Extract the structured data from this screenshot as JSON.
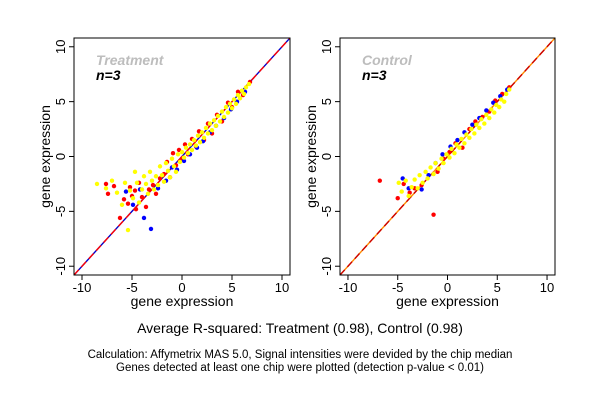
{
  "chart_data": [
    {
      "type": "scatter",
      "panel_label": "Treatment",
      "n_label": "n=3",
      "xlabel": "gene expression",
      "ylabel": "gene expression",
      "xlim": [
        -10.8,
        10.8
      ],
      "ylim": [
        -10.8,
        10.8
      ],
      "x_ticks": [
        -10,
        -5,
        0,
        5,
        10
      ],
      "y_ticks": [
        -10,
        -5,
        0,
        5,
        10
      ],
      "grid": false,
      "reference_lines": [
        {
          "slope": 1,
          "intercept": 0,
          "color": "#0000cc"
        },
        {
          "slope": 1,
          "intercept": 0,
          "color": "#ff0000"
        }
      ],
      "series": [
        {
          "color": "#ff0000",
          "values": [
            [
              -7.6,
              -2.5
            ],
            [
              -7.4,
              -3.4
            ],
            [
              -6.8,
              -2.7
            ],
            [
              -6.2,
              -5.6
            ],
            [
              -5.8,
              -3.9
            ],
            [
              -5.4,
              -4.3
            ],
            [
              -5.2,
              -2.8
            ],
            [
              -5.0,
              -3.6
            ],
            [
              -4.7,
              -3.1
            ],
            [
              -4.6,
              -4.8
            ],
            [
              -4.3,
              -2.4
            ],
            [
              -4.0,
              -3.7
            ],
            [
              -3.6,
              -4.6
            ],
            [
              -3.3,
              -3.0
            ],
            [
              -2.9,
              -2.6
            ],
            [
              -2.6,
              -3.4
            ],
            [
              -2.2,
              -2.0
            ],
            [
              -1.8,
              -1.6
            ],
            [
              -1.5,
              -0.5
            ],
            [
              -1.2,
              -1.9
            ],
            [
              -0.9,
              0.3
            ],
            [
              -0.6,
              -0.8
            ],
            [
              -0.3,
              0.6
            ],
            [
              0.0,
              -0.2
            ],
            [
              0.3,
              1.1
            ],
            [
              0.6,
              0.2
            ],
            [
              1.0,
              1.6
            ],
            [
              1.4,
              0.9
            ],
            [
              1.7,
              2.3
            ],
            [
              2.2,
              1.5
            ],
            [
              2.6,
              3.0
            ],
            [
              3.0,
              2.1
            ],
            [
              3.5,
              3.8
            ],
            [
              4.0,
              3.2
            ],
            [
              4.6,
              4.9
            ],
            [
              5.0,
              4.5
            ],
            [
              5.6,
              5.9
            ],
            [
              6.1,
              5.6
            ],
            [
              6.8,
              6.8
            ]
          ]
        },
        {
          "color": "#0000ff",
          "values": [
            [
              -5.6,
              -3.2
            ],
            [
              -4.9,
              -4.4
            ],
            [
              -4.2,
              -3.0
            ],
            [
              -3.8,
              -5.6
            ],
            [
              -3.1,
              -6.6
            ],
            [
              -2.4,
              -2.9
            ],
            [
              -1.6,
              -2.2
            ],
            [
              -1.0,
              -1.0
            ],
            [
              -0.5,
              -1.2
            ],
            [
              0.2,
              -0.4
            ],
            [
              0.8,
              0.2
            ],
            [
              1.5,
              0.8
            ],
            [
              2.1,
              1.4
            ],
            [
              2.8,
              2.2
            ],
            [
              3.4,
              2.8
            ],
            [
              4.2,
              3.5
            ],
            [
              4.9,
              4.3
            ],
            [
              5.5,
              5.0
            ],
            [
              6.3,
              5.9
            ]
          ]
        },
        {
          "color": "#ffff00",
          "values": [
            [
              -8.5,
              -2.5
            ],
            [
              -7.6,
              -2.9
            ],
            [
              -7.0,
              -2.2
            ],
            [
              -6.5,
              -3.3
            ],
            [
              -6.0,
              -4.4
            ],
            [
              -5.7,
              -2.4
            ],
            [
              -5.4,
              -6.7
            ],
            [
              -5.2,
              -3.1
            ],
            [
              -4.9,
              -3.8
            ],
            [
              -4.7,
              -1.4
            ],
            [
              -4.5,
              -2.4
            ],
            [
              -4.3,
              -4.2
            ],
            [
              -4.0,
              -3.0
            ],
            [
              -3.8,
              -1.8
            ],
            [
              -3.6,
              -2.5
            ],
            [
              -3.4,
              -3.4
            ],
            [
              -3.2,
              -1.4
            ],
            [
              -3.0,
              -2.2
            ],
            [
              -2.8,
              -3.0
            ],
            [
              -2.6,
              -1.8
            ],
            [
              -2.4,
              -2.6
            ],
            [
              -2.2,
              -0.9
            ],
            [
              -2.0,
              -1.7
            ],
            [
              -1.8,
              -2.3
            ],
            [
              -1.6,
              -0.6
            ],
            [
              -1.4,
              -1.3
            ],
            [
              -1.2,
              -1.9
            ],
            [
              -1.0,
              -0.2
            ],
            [
              -0.8,
              -0.9
            ],
            [
              -0.6,
              -1.4
            ],
            [
              -0.4,
              0.2
            ],
            [
              -0.2,
              -0.5
            ],
            [
              0.0,
              0.4
            ],
            [
              0.2,
              -0.1
            ],
            [
              0.4,
              0.8
            ],
            [
              0.6,
              0.3
            ],
            [
              0.8,
              1.1
            ],
            [
              1.0,
              0.6
            ],
            [
              1.2,
              1.5
            ],
            [
              1.4,
              1.0
            ],
            [
              1.6,
              1.9
            ],
            [
              1.8,
              1.3
            ],
            [
              2.0,
              2.2
            ],
            [
              2.2,
              1.7
            ],
            [
              2.4,
              2.6
            ],
            [
              2.6,
              2.1
            ],
            [
              2.8,
              3.0
            ],
            [
              3.0,
              2.4
            ],
            [
              3.2,
              3.3
            ],
            [
              3.4,
              2.8
            ],
            [
              3.6,
              3.7
            ],
            [
              3.8,
              3.2
            ],
            [
              4.0,
              4.1
            ],
            [
              4.2,
              3.6
            ],
            [
              4.4,
              4.5
            ],
            [
              4.6,
              4.0
            ],
            [
              4.8,
              4.8
            ],
            [
              5.0,
              4.4
            ],
            [
              5.2,
              5.2
            ],
            [
              5.4,
              4.8
            ],
            [
              5.6,
              5.6
            ],
            [
              5.8,
              5.3
            ],
            [
              6.0,
              6.0
            ],
            [
              6.2,
              5.7
            ],
            [
              6.4,
              6.3
            ],
            [
              6.7,
              6.6
            ]
          ]
        }
      ]
    },
    {
      "type": "scatter",
      "panel_label": "Control",
      "n_label": "n=3",
      "xlabel": "gene expression",
      "ylabel": "gene expression",
      "xlim": [
        -10.8,
        10.8
      ],
      "ylim": [
        -10.8,
        10.8
      ],
      "x_ticks": [
        -10,
        -5,
        0,
        5,
        10
      ],
      "y_ticks": [
        -10,
        -5,
        0,
        5,
        10
      ],
      "grid": false,
      "reference_lines": [
        {
          "slope": 1,
          "intercept": 0,
          "color": "#ff8c00"
        },
        {
          "slope": 1,
          "intercept": 0,
          "color": "#cc0000"
        }
      ],
      "series": [
        {
          "color": "#ff0000",
          "values": [
            [
              -6.8,
              -2.2
            ],
            [
              -5.0,
              -3.8
            ],
            [
              -4.4,
              -2.5
            ],
            [
              -3.8,
              -3.3
            ],
            [
              -3.3,
              -2.9
            ],
            [
              -2.6,
              -2.6
            ],
            [
              -1.4,
              -5.3
            ],
            [
              -1.0,
              -1.4
            ],
            [
              -0.4,
              -0.2
            ],
            [
              0.2,
              0.4
            ],
            [
              0.8,
              1.2
            ],
            [
              1.5,
              0.8
            ],
            [
              2.2,
              2.5
            ],
            [
              2.8,
              3.2
            ],
            [
              3.5,
              3.6
            ],
            [
              4.2,
              4.1
            ],
            [
              4.8,
              5.1
            ],
            [
              5.5,
              5.7
            ],
            [
              6.2,
              6.3
            ]
          ]
        },
        {
          "color": "#0000ff",
          "values": [
            [
              -4.5,
              -2.0
            ],
            [
              -3.9,
              -2.9
            ],
            [
              -2.6,
              -3.0
            ],
            [
              -1.9,
              -1.7
            ],
            [
              -1.2,
              -0.6
            ],
            [
              -0.5,
              0.2
            ],
            [
              0.3,
              0.9
            ],
            [
              1.0,
              1.5
            ],
            [
              1.7,
              2.2
            ],
            [
              2.5,
              2.9
            ],
            [
              3.2,
              3.5
            ],
            [
              3.9,
              4.2
            ],
            [
              4.6,
              4.9
            ],
            [
              5.3,
              5.5
            ],
            [
              6.0,
              6.1
            ]
          ]
        },
        {
          "color": "#ffff00",
          "values": [
            [
              -4.9,
              -2.4
            ],
            [
              -4.6,
              -3.2
            ],
            [
              -4.2,
              -2.2
            ],
            [
              -3.9,
              -3.6
            ],
            [
              -3.6,
              -2.8
            ],
            [
              -3.3,
              -2.1
            ],
            [
              -3.0,
              -2.9
            ],
            [
              -2.8,
              -1.7
            ],
            [
              -2.5,
              -2.4
            ],
            [
              -2.2,
              -1.4
            ],
            [
              -2.0,
              -2.0
            ],
            [
              -1.7,
              -1.0
            ],
            [
              -1.4,
              -1.6
            ],
            [
              -1.2,
              -0.6
            ],
            [
              -0.9,
              -1.1
            ],
            [
              -0.6,
              -0.2
            ],
            [
              -0.4,
              -0.6
            ],
            [
              -0.1,
              0.2
            ],
            [
              0.2,
              -0.1
            ],
            [
              0.4,
              0.7
            ],
            [
              0.7,
              0.3
            ],
            [
              0.9,
              1.1
            ],
            [
              1.2,
              0.8
            ],
            [
              1.4,
              1.6
            ],
            [
              1.7,
              1.2
            ],
            [
              1.9,
              2.0
            ],
            [
              2.2,
              1.7
            ],
            [
              2.4,
              2.5
            ],
            [
              2.7,
              2.1
            ],
            [
              2.9,
              2.9
            ],
            [
              3.2,
              2.6
            ],
            [
              3.4,
              3.4
            ],
            [
              3.7,
              3.0
            ],
            [
              3.9,
              3.8
            ],
            [
              4.2,
              3.5
            ],
            [
              4.4,
              4.3
            ],
            [
              4.7,
              4.0
            ],
            [
              4.9,
              4.7
            ],
            [
              5.2,
              4.5
            ],
            [
              5.4,
              5.2
            ],
            [
              5.7,
              5.0
            ],
            [
              5.9,
              5.7
            ],
            [
              6.2,
              6.1
            ]
          ]
        }
      ]
    }
  ],
  "summary_text": "Average R-squared: Treatment (0.98), Control (0.98)",
  "notes": [
    "Calculation: Affymetrix MAS 5.0, Signal intensities were devided by the chip median",
    "Genes detected at least one chip were plotted (detection p-value < 0.01)"
  ]
}
